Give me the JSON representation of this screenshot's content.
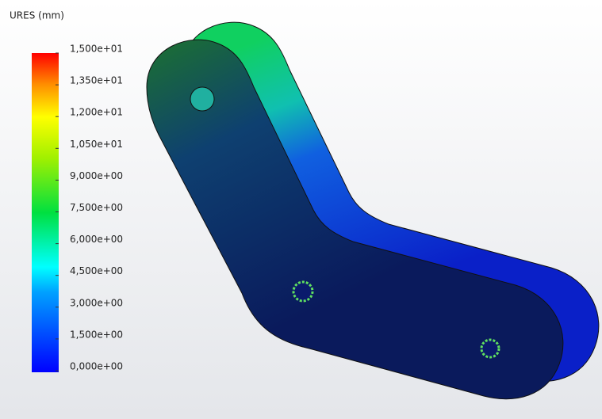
{
  "legend": {
    "title": "URES (mm)",
    "labels": [
      "1,500e+01",
      "1,350e+01",
      "1,200e+01",
      "1,050e+01",
      "9,000e+00",
      "7,500e+00",
      "6,000e+00",
      "4,500e+00",
      "3,000e+00",
      "1,500e+00",
      "0,000e+00"
    ]
  }
}
